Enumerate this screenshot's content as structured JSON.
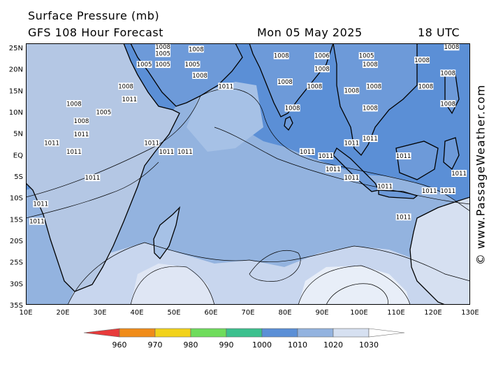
{
  "header": {
    "title": "Surface Pressure (mb)",
    "subtitle": "GFS 108 Hour Forecast",
    "date": "Mon 05 May 2025",
    "time": "18 UTC"
  },
  "watermark": "© www.PassageWeather.com",
  "axes": {
    "lat_labels": [
      "25N",
      "20N",
      "15N",
      "10N",
      "5N",
      "EQ",
      "5S",
      "10S",
      "15S",
      "20S",
      "25S",
      "30S",
      "35S"
    ],
    "lon_labels": [
      "10E",
      "20E",
      "30E",
      "40E",
      "50E",
      "60E",
      "70E",
      "80E",
      "90E",
      "100E",
      "110E",
      "120E",
      "130E"
    ],
    "lat_range": [
      -35,
      25
    ],
    "lon_range": [
      10,
      130
    ]
  },
  "colorbar": {
    "labels": [
      "960",
      "970",
      "980",
      "990",
      "1000",
      "1010",
      "1020",
      "1030"
    ],
    "colors": [
      "#e83b3b",
      "#f08c1a",
      "#f2d21b",
      "#6fdc5c",
      "#3cc08e",
      "#5b8fd6",
      "#93b3df",
      "#d6e0f1",
      "#ffffff"
    ]
  },
  "isobar_labels": [
    {
      "text": "1008",
      "lon": 47,
      "lat": 24
    },
    {
      "text": "1008",
      "lon": 56,
      "lat": 23.5
    },
    {
      "text": "1005",
      "lon": 47,
      "lat": 22.5
    },
    {
      "text": "1008",
      "lon": 79,
      "lat": 22
    },
    {
      "text": "1006",
      "lon": 90,
      "lat": 22
    },
    {
      "text": "1005",
      "lon": 102,
      "lat": 22
    },
    {
      "text": "1008",
      "lon": 117,
      "lat": 21
    },
    {
      "text": "1008",
      "lon": 125,
      "lat": 24
    },
    {
      "text": "1005",
      "lon": 42,
      "lat": 20
    },
    {
      "text": "1005",
      "lon": 47,
      "lat": 20
    },
    {
      "text": "1005",
      "lon": 55,
      "lat": 20
    },
    {
      "text": "1008",
      "lon": 90,
      "lat": 19
    },
    {
      "text": "1008",
      "lon": 103,
      "lat": 20
    },
    {
      "text": "1008",
      "lon": 124,
      "lat": 18
    },
    {
      "text": "1008",
      "lon": 57,
      "lat": 17.5
    },
    {
      "text": "1011",
      "lon": 64,
      "lat": 15
    },
    {
      "text": "1008",
      "lon": 37,
      "lat": 15
    },
    {
      "text": "1008",
      "lon": 80,
      "lat": 16
    },
    {
      "text": "1008",
      "lon": 88,
      "lat": 15
    },
    {
      "text": "1008",
      "lon": 98,
      "lat": 14
    },
    {
      "text": "1008",
      "lon": 104,
      "lat": 15
    },
    {
      "text": "1008",
      "lon": 118,
      "lat": 15
    },
    {
      "text": "1011",
      "lon": 38,
      "lat": 12
    },
    {
      "text": "1008",
      "lon": 23,
      "lat": 11
    },
    {
      "text": "1005",
      "lon": 31,
      "lat": 9
    },
    {
      "text": "1008",
      "lon": 82,
      "lat": 10
    },
    {
      "text": "1008",
      "lon": 103,
      "lat": 10
    },
    {
      "text": "1008",
      "lon": 124,
      "lat": 11
    },
    {
      "text": "1008",
      "lon": 25,
      "lat": 7
    },
    {
      "text": "1011",
      "lon": 25,
      "lat": 4
    },
    {
      "text": "1011",
      "lon": 17,
      "lat": 2
    },
    {
      "text": "1011",
      "lon": 23,
      "lat": 0
    },
    {
      "text": "1011",
      "lon": 44,
      "lat": 2
    },
    {
      "text": "1011",
      "lon": 48,
      "lat": 0
    },
    {
      "text": "1011",
      "lon": 53,
      "lat": 0
    },
    {
      "text": "1011",
      "lon": 86,
      "lat": 0
    },
    {
      "text": "1011",
      "lon": 91,
      "lat": -1
    },
    {
      "text": "1011",
      "lon": 98,
      "lat": 2
    },
    {
      "text": "1011",
      "lon": 103,
      "lat": 3
    },
    {
      "text": "1011",
      "lon": 112,
      "lat": -1
    },
    {
      "text": "1011",
      "lon": 28,
      "lat": -6
    },
    {
      "text": "1011",
      "lon": 14,
      "lat": -12
    },
    {
      "text": "1011",
      "lon": 13,
      "lat": -16
    },
    {
      "text": "1011",
      "lon": 93,
      "lat": -4
    },
    {
      "text": "1011",
      "lon": 98,
      "lat": -6
    },
    {
      "text": "1011",
      "lon": 107,
      "lat": -8
    },
    {
      "text": "1011",
      "lon": 112,
      "lat": -15
    },
    {
      "text": "1011",
      "lon": 119,
      "lat": -9
    },
    {
      "text": "1011",
      "lon": 124,
      "lat": -9
    },
    {
      "text": "1011",
      "lon": 127,
      "lat": -5
    }
  ]
}
